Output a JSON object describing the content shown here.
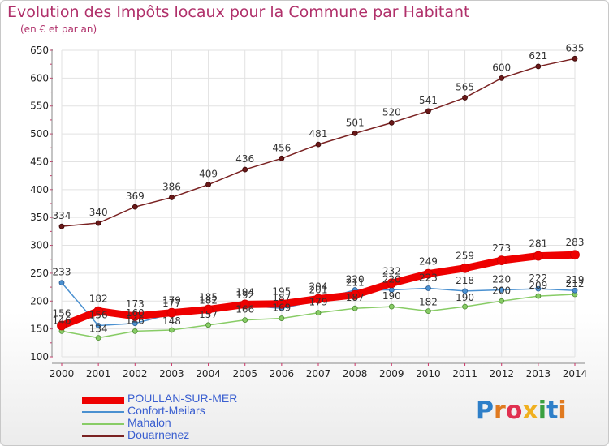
{
  "header": {
    "title": "Evolution des Impôts locaux pour la Commune par Habitant",
    "subtitle": "(en € et par an)"
  },
  "logo": {
    "text": "Proxiti",
    "letter_colors": [
      "#2e7fc8",
      "#e07a20",
      "#e03050",
      "#f0b020",
      "#3aa040",
      "#2e7fc8",
      "#e07a20"
    ]
  },
  "chart_data": {
    "type": "line",
    "title": "Evolution des Impôts locaux pour la Commune par Habitant",
    "subtitle": "(en € et par an)",
    "xlabel": "",
    "ylabel": "",
    "x": [
      2000,
      2001,
      2002,
      2003,
      2004,
      2005,
      2006,
      2007,
      2008,
      2009,
      2010,
      2011,
      2012,
      2013,
      2014
    ],
    "ylim": [
      100,
      650
    ],
    "yticks": [
      100,
      150,
      200,
      250,
      300,
      350,
      400,
      450,
      500,
      550,
      600,
      650
    ],
    "grid": true,
    "legend": "bottom-left",
    "series": [
      {
        "name": "POULLAN-SUR-MER",
        "color": "#ee0000",
        "values": [
          156,
          182,
          173,
          179,
          185,
          194,
          195,
          204,
          211,
          232,
          249,
          259,
          273,
          281,
          283
        ]
      },
      {
        "name": "Confort-Meilars",
        "color": "#4a90d0",
        "values": [
          233,
          156,
          160,
          177,
          182,
          192,
          187,
          201,
          220,
          220,
          223,
          218,
          220,
          222,
          219
        ]
      },
      {
        "name": "Mahalon",
        "color": "#88cc66",
        "values": [
          146,
          134,
          146,
          148,
          157,
          166,
          169,
          179,
          187,
          190,
          182,
          190,
          200,
          209,
          212
        ]
      },
      {
        "name": "Douarnenez",
        "color": "#7a2222",
        "values": [
          334,
          340,
          369,
          386,
          409,
          436,
          456,
          481,
          501,
          520,
          541,
          565,
          600,
          621,
          635
        ]
      }
    ]
  }
}
